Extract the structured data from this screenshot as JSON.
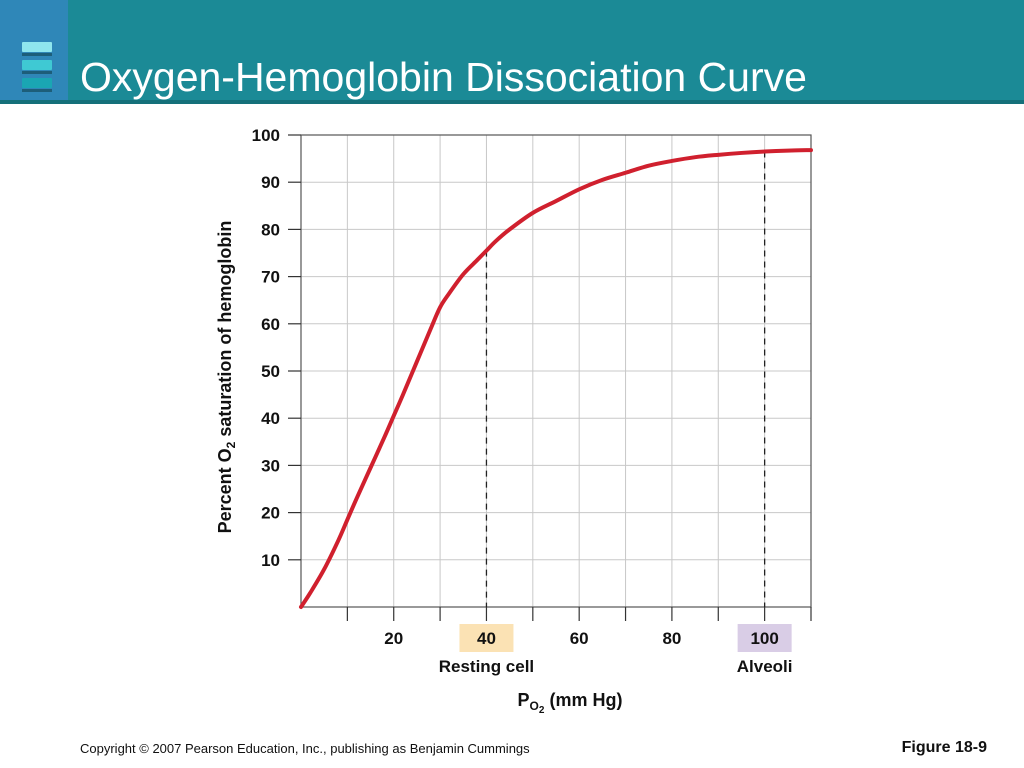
{
  "slide": {
    "title": "Oxygen-Hemoglobin Dissociation Curve",
    "copyright": "Copyright © 2007 Pearson Education, Inc., publishing as Benjamin Cummings",
    "figure": "Figure 18-9"
  },
  "colors": {
    "title_bar": "#1b8a96",
    "logo_block": "#2f87b8",
    "curve": "#d0202e",
    "resting_highlight": "#fbe2b4",
    "alveoli_highlight": "#d9cde6",
    "grid": "#c8c8c8"
  },
  "chart_data": {
    "type": "line",
    "title": "",
    "xlabel_main": "P",
    "xlabel_sub": "O2",
    "xlabel_sub_text": "O",
    "xlabel_sub_num": "2",
    "xlabel_unit": "(mm Hg)",
    "ylabel_pre": "Percent O",
    "ylabel_sub": "2",
    "ylabel_post": " saturation of hemoglobin",
    "xlim": [
      0,
      110
    ],
    "ylim": [
      0,
      100
    ],
    "x_ticks": [
      20,
      40,
      60,
      80,
      100
    ],
    "x_tick_labels": [
      "20",
      "40",
      "60",
      "80",
      "100"
    ],
    "y_ticks": [
      10,
      20,
      30,
      40,
      50,
      60,
      70,
      80,
      90,
      100
    ],
    "y_tick_labels": [
      "10",
      "20",
      "30",
      "40",
      "50",
      "60",
      "70",
      "80",
      "90",
      "100"
    ],
    "grid": true,
    "series": [
      {
        "x": [
          0,
          2,
          5,
          8,
          10,
          12,
          15,
          18,
          20,
          22,
          25,
          28,
          30,
          32,
          35,
          38,
          40,
          42,
          45,
          50,
          55,
          60,
          65,
          70,
          75,
          80,
          85,
          90,
          95,
          100,
          105,
          110
        ],
        "y": [
          0,
          3,
          8,
          14,
          18.5,
          23,
          29.5,
          36,
          40.5,
          45,
          52,
          59,
          63.5,
          66.5,
          70.5,
          73.5,
          75.5,
          77.5,
          80,
          83.5,
          86,
          88.5,
          90.5,
          92,
          93.5,
          94.5,
          95.3,
          95.8,
          96.2,
          96.5,
          96.7,
          96.8
        ]
      }
    ],
    "markers": [
      {
        "x": 40,
        "label": "40",
        "sublabel": "Resting cell"
      },
      {
        "x": 100,
        "label": "100",
        "sublabel": "Alveoli"
      }
    ]
  }
}
